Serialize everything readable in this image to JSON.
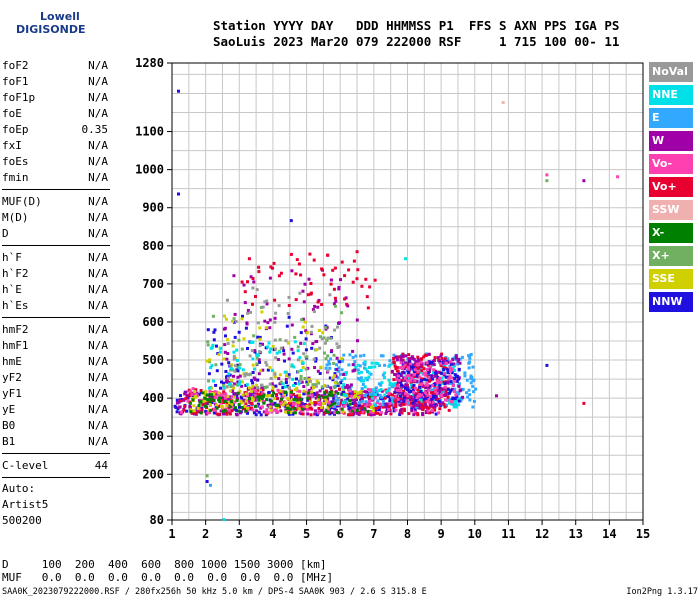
{
  "logo": {
    "line1": "Lowell",
    "line2": "DIGISONDE"
  },
  "header": {
    "line1": "Station YYYY DAY   DDD HHMMSS P1  FFS S AXN PPS IGA PS",
    "line2": "SaoLuis 2023 Mar20 079 222000 RSF     1 715 100 00- 11"
  },
  "params": {
    "group1": [
      {
        "k": "foF2",
        "v": "N/A"
      },
      {
        "k": "foF1",
        "v": "N/A"
      },
      {
        "k": "foF1p",
        "v": "N/A"
      },
      {
        "k": "foE",
        "v": "N/A"
      },
      {
        "k": "foEp",
        "v": "0.35"
      },
      {
        "k": "fxI",
        "v": "N/A"
      },
      {
        "k": "foEs",
        "v": "N/A"
      },
      {
        "k": "fmin",
        "v": "N/A"
      }
    ],
    "group2": [
      {
        "k": "MUF(D)",
        "v": "N/A"
      },
      {
        "k": "M(D)",
        "v": "N/A"
      },
      {
        "k": "D",
        "v": "N/A"
      }
    ],
    "group3": [
      {
        "k": "h`F",
        "v": "N/A"
      },
      {
        "k": "h`F2",
        "v": "N/A"
      },
      {
        "k": "h`E",
        "v": "N/A"
      },
      {
        "k": "h`Es",
        "v": "N/A"
      }
    ],
    "group4": [
      {
        "k": "hmF2",
        "v": "N/A"
      },
      {
        "k": "hmF1",
        "v": "N/A"
      },
      {
        "k": "hmE",
        "v": "N/A"
      },
      {
        "k": "yF2",
        "v": "N/A"
      },
      {
        "k": "yF1",
        "v": "N/A"
      },
      {
        "k": "yE",
        "v": "N/A"
      },
      {
        "k": "B0",
        "v": "N/A"
      },
      {
        "k": "B1",
        "v": "N/A"
      }
    ],
    "group5": [
      {
        "k": "C-level",
        "v": "44"
      }
    ]
  },
  "auto": {
    "l1": "Auto:",
    "l2": "Artist5",
    "l3": "500200"
  },
  "dtable": {
    "line1": "D     100  200  400  600  800 1000 1500 3000 [km]",
    "line2": "MUF   0.0  0.0  0.0  0.0  0.0  0.0  0.0  0.0 [MHz]"
  },
  "footer": {
    "left": "SAA0K_2023079222000.RSF / 280fx256h 50 kHz 5.0 km / DPS-4 SAA0K 903 / 2.6 S 315.8 E",
    "right": "Ion2Png 1.3.17"
  },
  "legend": [
    {
      "label": "NoVal",
      "color": "#999999"
    },
    {
      "label": "NNE",
      "color": "#00e0e8"
    },
    {
      "label": "E",
      "color": "#33a8ff"
    },
    {
      "label": "W",
      "color": "#a000a8"
    },
    {
      "label": "Vo-",
      "color": "#ff40b0"
    },
    {
      "label": "Vo+",
      "color": "#e80030"
    },
    {
      "label": "SSW",
      "color": "#f0b0b0"
    },
    {
      "label": "X-",
      "color": "#008000"
    },
    {
      "label": "X+",
      "color": "#70b060"
    },
    {
      "label": "SSE",
      "color": "#d0d000"
    },
    {
      "label": "NNW",
      "color": "#2010e0"
    }
  ],
  "chart_data": {
    "type": "scatter",
    "title": "",
    "xlabel": "",
    "ylabel": "",
    "xlim": [
      1,
      15
    ],
    "ylim": [
      80,
      1280
    ],
    "xticks": [
      1,
      2,
      3,
      4,
      5,
      6,
      7,
      8,
      9,
      10,
      11,
      12,
      13,
      14,
      15
    ],
    "yticks": [
      80,
      200,
      300,
      400,
      500,
      600,
      700,
      800,
      900,
      1000,
      1100,
      1280
    ],
    "clusters": [
      {
        "name": "NNW",
        "color": "#2010e0",
        "xmin": 1.0,
        "xmax": 9.0,
        "ymin": 360,
        "ymax": 420,
        "n": 260
      },
      {
        "name": "W",
        "color": "#a000a8",
        "xmin": 1.1,
        "xmax": 9.0,
        "ymin": 360,
        "ymax": 425,
        "n": 260
      },
      {
        "name": "Vo+",
        "color": "#e80030",
        "xmin": 1.2,
        "xmax": 9.2,
        "ymin": 360,
        "ymax": 430,
        "n": 200
      },
      {
        "name": "Vo-",
        "color": "#ff40b0",
        "xmin": 1.2,
        "xmax": 9.0,
        "ymin": 365,
        "ymax": 430,
        "n": 160
      },
      {
        "name": "SSE",
        "color": "#d0d000",
        "xmin": 1.5,
        "xmax": 7.0,
        "ymin": 365,
        "ymax": 430,
        "n": 110
      },
      {
        "name": "X-",
        "color": "#008000",
        "xmin": 1.5,
        "xmax": 7.0,
        "ymin": 365,
        "ymax": 420,
        "n": 90
      },
      {
        "name": "E",
        "color": "#33a8ff",
        "xmin": 5.5,
        "xmax": 10.0,
        "ymin": 380,
        "ymax": 520,
        "n": 220
      },
      {
        "name": "NNE",
        "color": "#00e0e8",
        "xmin": 6.0,
        "xmax": 9.5,
        "ymin": 380,
        "ymax": 500,
        "n": 120
      },
      {
        "name": "Vo+",
        "color": "#e80030",
        "xmin": 7.5,
        "xmax": 9.2,
        "ymin": 380,
        "ymax": 520,
        "n": 140
      },
      {
        "name": "W",
        "color": "#a000a8",
        "xmin": 7.5,
        "xmax": 9.6,
        "ymin": 380,
        "ymax": 520,
        "n": 120
      },
      {
        "name": "NNW",
        "color": "#2010e0",
        "xmin": 7.6,
        "xmax": 9.5,
        "ymin": 390,
        "ymax": 500,
        "n": 100
      },
      {
        "name": "Vo-",
        "color": "#ff40b0",
        "xmin": 7.6,
        "xmax": 9.4,
        "ymin": 390,
        "ymax": 500,
        "n": 90
      },
      {
        "name": "NNW",
        "color": "#2010e0",
        "xmin": 2.0,
        "xmax": 6.0,
        "ymin": 430,
        "ymax": 620,
        "n": 90
      },
      {
        "name": "W",
        "color": "#a000a8",
        "xmin": 2.5,
        "xmax": 6.5,
        "ymin": 430,
        "ymax": 740,
        "n": 110
      },
      {
        "name": "X+",
        "color": "#70b060",
        "xmin": 2.0,
        "xmax": 6.0,
        "ymin": 430,
        "ymax": 650,
        "n": 60
      },
      {
        "name": "SSE",
        "color": "#d0d000",
        "xmin": 2.0,
        "xmax": 6.0,
        "ymin": 430,
        "ymax": 650,
        "n": 60
      },
      {
        "name": "NoVal",
        "color": "#999999",
        "xmin": 2.5,
        "xmax": 6.0,
        "ymin": 430,
        "ymax": 700,
        "n": 70
      },
      {
        "name": "Vo+",
        "color": "#e80030",
        "xmin": 3.0,
        "xmax": 7.0,
        "ymin": 640,
        "ymax": 790,
        "n": 55
      },
      {
        "name": "NNE",
        "color": "#00e0e8",
        "xmin": 2.0,
        "xmax": 5.0,
        "ymin": 430,
        "ymax": 560,
        "n": 50
      }
    ],
    "points": [
      {
        "x": 1.15,
        "y": 1210,
        "name": "NNW"
      },
      {
        "x": 1.15,
        "y": 940,
        "name": "NNW"
      },
      {
        "x": 2.1,
        "y": 175,
        "name": "E"
      },
      {
        "x": 2.5,
        "y": 85,
        "name": "NNE"
      },
      {
        "x": 2.0,
        "y": 200,
        "name": "X+"
      },
      {
        "x": 2.0,
        "y": 185,
        "name": "NNW"
      },
      {
        "x": 10.8,
        "y": 1180,
        "name": "SSW"
      },
      {
        "x": 12.1,
        "y": 990,
        "name": "Vo-"
      },
      {
        "x": 12.1,
        "y": 975,
        "name": "X+"
      },
      {
        "x": 13.2,
        "y": 975,
        "name": "W"
      },
      {
        "x": 14.2,
        "y": 985,
        "name": "Vo-"
      },
      {
        "x": 12.1,
        "y": 490,
        "name": "NNW"
      },
      {
        "x": 13.2,
        "y": 390,
        "name": "Vo+"
      },
      {
        "x": 10.6,
        "y": 410,
        "name": "W"
      },
      {
        "x": 4.5,
        "y": 870,
        "name": "NNW"
      },
      {
        "x": 7.9,
        "y": 770,
        "name": "NNE"
      }
    ]
  }
}
